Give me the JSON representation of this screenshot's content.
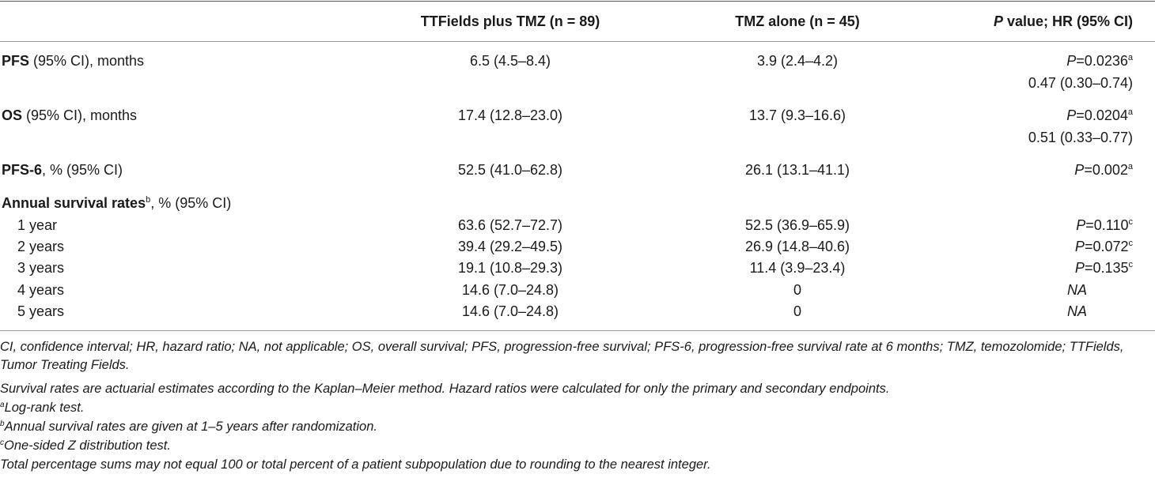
{
  "header": {
    "col1": "TTFields plus TMZ (n = 89)",
    "col2": "TMZ alone (n = 45)",
    "col3_p": "P",
    "col3_rest": " value; HR (95% CI)"
  },
  "rows": {
    "pfs": {
      "label_bold": "PFS",
      "label_rest": " (95% CI), months",
      "v1": "6.5 (4.5–8.4)",
      "v2": "3.9 (2.4–4.2)",
      "p": "P",
      "pval": "=0.0236",
      "psup": "a",
      "hr": "0.47 (0.30–0.74)"
    },
    "os": {
      "label_bold": "OS",
      "label_rest": " (95% CI), months",
      "v1": "17.4 (12.8–23.0)",
      "v2": "13.7 (9.3–16.6)",
      "p": "P",
      "pval": "=0.0204",
      "psup": "a",
      "hr": "0.51 (0.33–0.77)"
    },
    "pfs6": {
      "label_bold": "PFS-6",
      "label_rest": ", % (95% CI)",
      "v1": "52.5 (41.0–62.8)",
      "v2": "26.1 (13.1–41.1)",
      "p": "P",
      "pval": "=0.002",
      "psup": "a"
    },
    "annual": {
      "label_bold": "Annual survival rates",
      "sup": "b",
      "label_rest": ", % (95% CI)"
    },
    "y1": {
      "label": "1 year",
      "v1": "63.6 (52.7–72.7)",
      "v2": "52.5 (36.9–65.9)",
      "p": "P",
      "pval": "=0.110",
      "psup": "c"
    },
    "y2": {
      "label": "2 years",
      "v1": "39.4 (29.2–49.5)",
      "v2": "26.9 (14.8–40.6)",
      "p": "P",
      "pval": "=0.072",
      "psup": "c"
    },
    "y3": {
      "label": "3 years",
      "v1": "19.1 (10.8–29.3)",
      "v2": "11.4 (3.9–23.4)",
      "p": "P",
      "pval": "=0.135",
      "psup": "c"
    },
    "y4": {
      "label": "4 years",
      "v1": "14.6 (7.0–24.8)",
      "v2": "0",
      "pna": "NA"
    },
    "y5": {
      "label": "5 years",
      "v1": "14.6 (7.0–24.8)",
      "v2": "0",
      "pna": "NA"
    }
  },
  "footnotes": {
    "abbrev": "CI, confidence interval; HR, hazard ratio; NA, not applicable; OS, overall survival; PFS, progression-free survival; PFS-6, progression-free survival rate at 6 months; TMZ, temozolomide; TTFields, Tumor Treating Fields.",
    "method": "Survival rates are actuarial estimates according to the Kaplan–Meier method. Hazard ratios were calculated for only the primary and secondary endpoints.",
    "a_sup": "a",
    "a_text": "Log-rank test.",
    "b_sup": "b",
    "b_text": "Annual survival rates are given at 1–5 years after randomization.",
    "c_sup": "c",
    "c_text": "One-sided Z distribution test.",
    "total": "Total percentage sums may not equal 100 or total percent of a patient subpopulation due to rounding to the nearest integer."
  }
}
